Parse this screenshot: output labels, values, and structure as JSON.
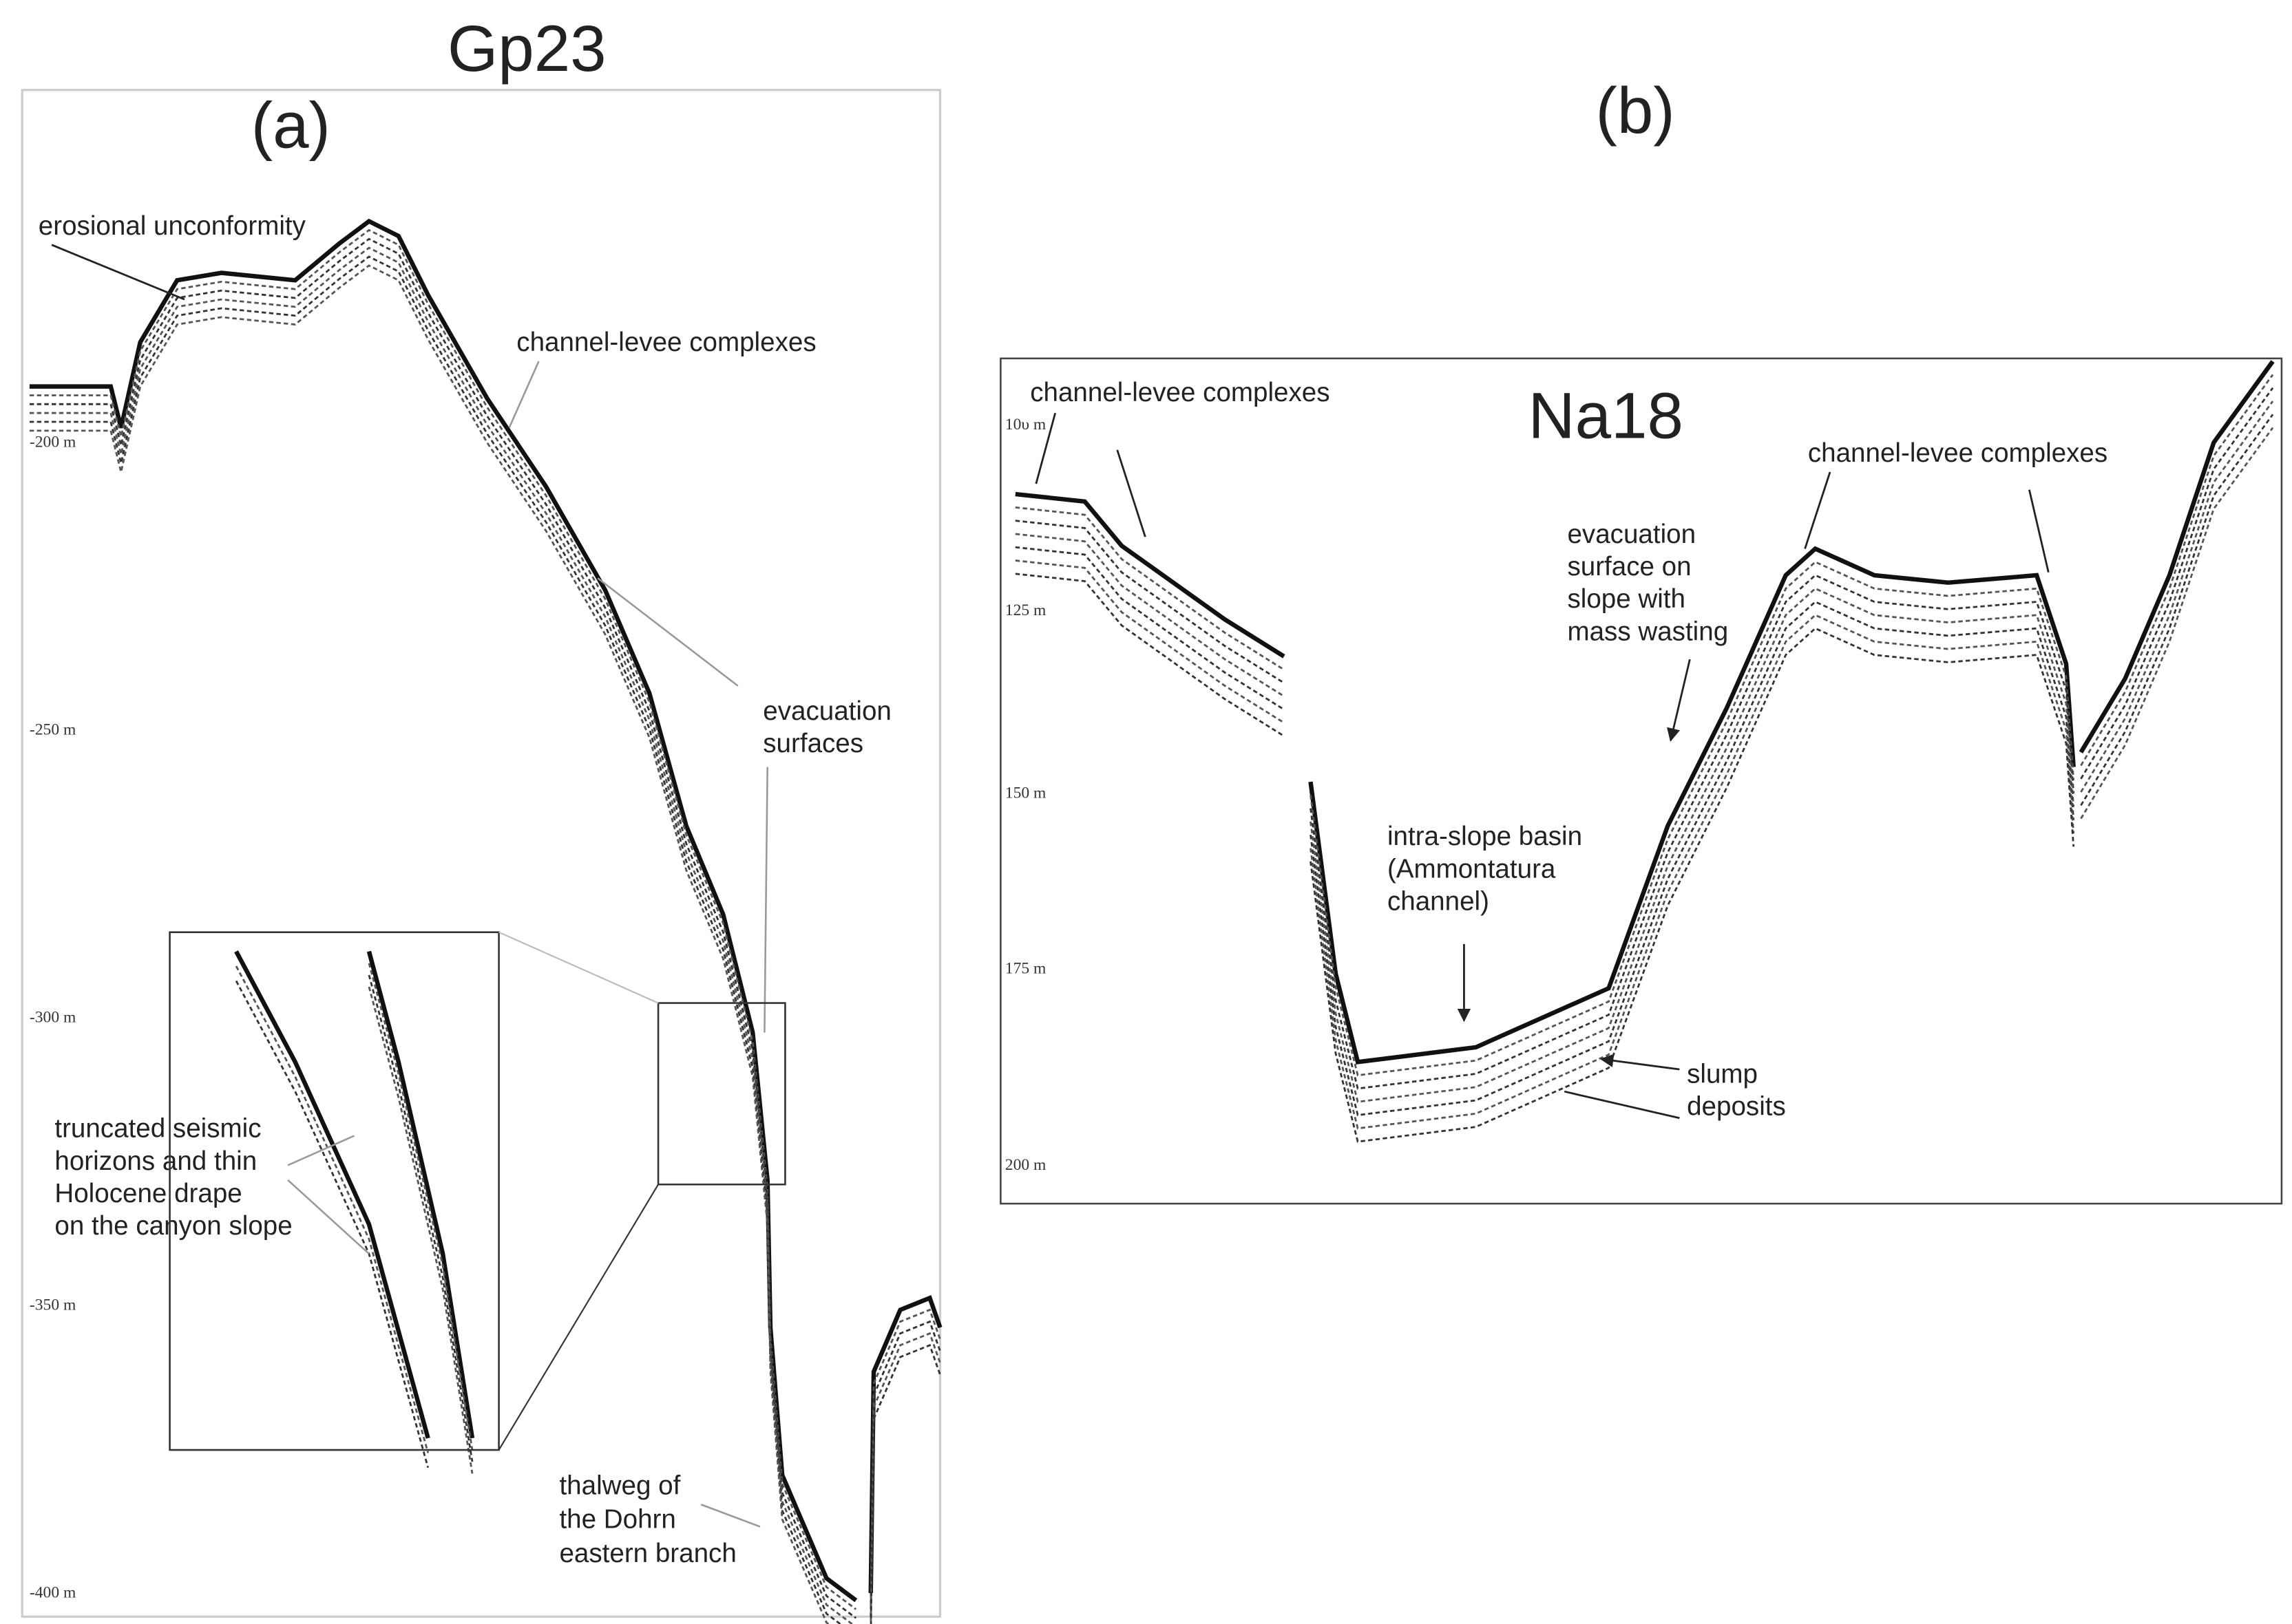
{
  "panels": [
    {
      "title": "Gp23",
      "label": "(a)",
      "depth_labels": [
        "-200 m",
        "-250 m",
        "-300 m",
        "-350 m",
        "-400 m"
      ],
      "annotations": [
        {
          "lines": [
            "erosional unconformity"
          ]
        },
        {
          "lines": [
            "channel-levee complexes"
          ]
        },
        {
          "lines": [
            "evacuation",
            "surfaces"
          ]
        },
        {
          "lines": [
            "truncated seismic",
            "horizons and thin",
            "Holocene drape",
            "on the canyon slope"
          ]
        },
        {
          "lines": [
            "thalweg of",
            "the Dohrn",
            "eastern branch"
          ]
        }
      ]
    },
    {
      "title": "Na18",
      "label": "(b)",
      "depth_labels": [
        "10υ m",
        "125 m",
        "150 m",
        "175 m",
        "200 m"
      ],
      "annotations": [
        {
          "lines": [
            "channel-levee complexes"
          ]
        },
        {
          "lines": [
            "channel-levee complexes"
          ]
        },
        {
          "lines": [
            "evacuation",
            "surface on",
            "slope with",
            "mass wasting"
          ]
        },
        {
          "lines": [
            "intra-slope basin",
            "(Ammontatura",
            "channel)"
          ]
        },
        {
          "lines": [
            "slump",
            "deposits"
          ]
        }
      ]
    }
  ]
}
